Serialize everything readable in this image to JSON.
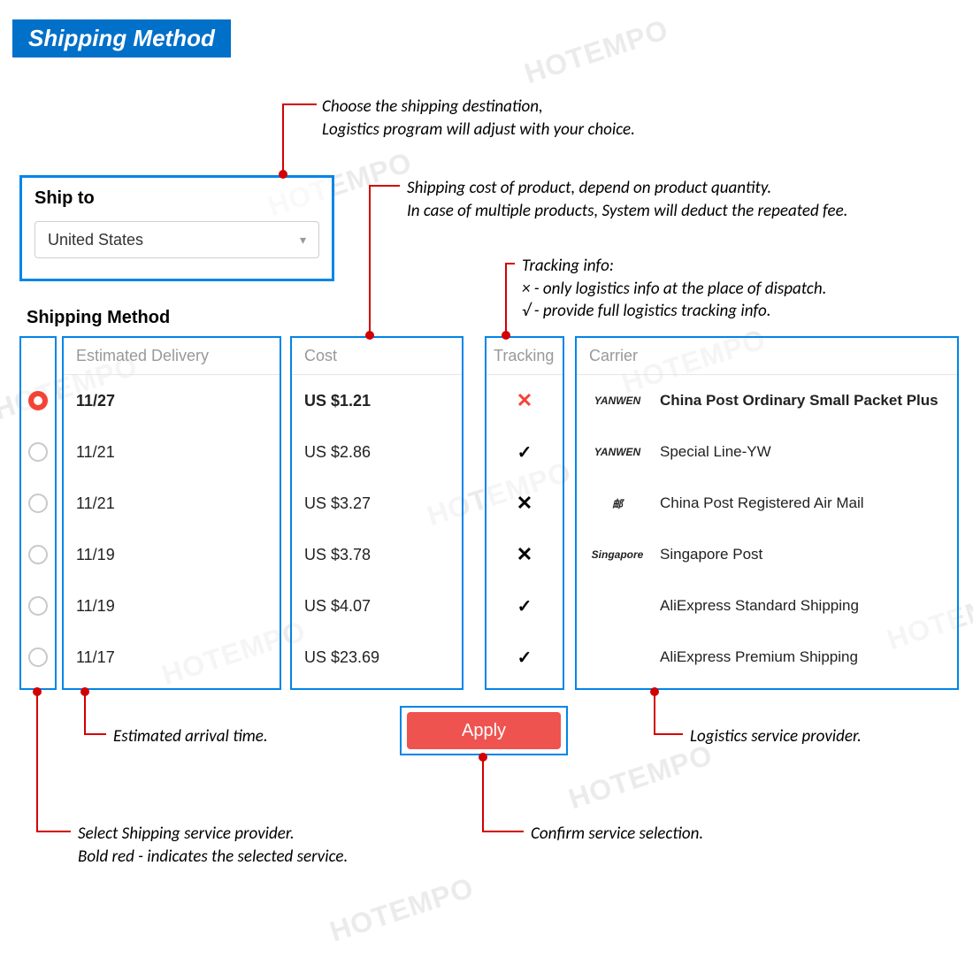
{
  "watermark_text": "HOTEMPO",
  "header": {
    "title": "Shipping Method"
  },
  "ship_to": {
    "label": "Ship to",
    "selected": "United States"
  },
  "section_title": "Shipping Method",
  "columns": {
    "est": "Estimated Delivery",
    "cost": "Cost",
    "tracking": "Tracking",
    "carrier": "Carrier"
  },
  "rows": [
    {
      "selected": true,
      "date": "11/27",
      "cost": "US $1.21",
      "tracking": "x-red",
      "logo": "YANWEN",
      "carrier": "China Post Ordinary Small Packet Plus",
      "bold": true
    },
    {
      "selected": false,
      "date": "11/21",
      "cost": "US $2.86",
      "tracking": "check",
      "logo": "YANWEN",
      "carrier": "Special Line-YW"
    },
    {
      "selected": false,
      "date": "11/21",
      "cost": "US $3.27",
      "tracking": "x",
      "logo": "邮",
      "carrier": "China Post Registered Air Mail"
    },
    {
      "selected": false,
      "date": "11/19",
      "cost": "US $3.78",
      "tracking": "x",
      "logo": "Singapore",
      "carrier": "Singapore Post"
    },
    {
      "selected": false,
      "date": "11/19",
      "cost": "US $4.07",
      "tracking": "check",
      "logo": "",
      "carrier": "AliExpress Standard Shipping"
    },
    {
      "selected": false,
      "date": "11/17",
      "cost": "US $23.69",
      "tracking": "check",
      "logo": "",
      "carrier": "AliExpress Premium Shipping"
    }
  ],
  "apply_label": "Apply",
  "annotations": {
    "shipto_line1": "Choose the shipping destination,",
    "shipto_line2": "Logistics program will adjust with your choice.",
    "cost_line1": "Shipping cost of product, depend on product quantity.",
    "cost_line2": "In case of multiple products, System will deduct the repeated fee.",
    "track_line1": "Tracking info:",
    "track_line2": "× - only logistics info at the place of dispatch.",
    "track_line3": "√ - provide full logistics tracking info.",
    "est_note": "Estimated arrival time.",
    "carrier_note": "Logistics service provider.",
    "radio_line1": "Select Shipping service provider.",
    "radio_line2": "Bold red - indicates the selected service.",
    "apply_note": "Confirm service selection."
  },
  "colors": {
    "accent_blue": "#0085e8",
    "accent_red": "#d30000",
    "button_red": "#ef5350",
    "radio_selected": "#f44336"
  }
}
